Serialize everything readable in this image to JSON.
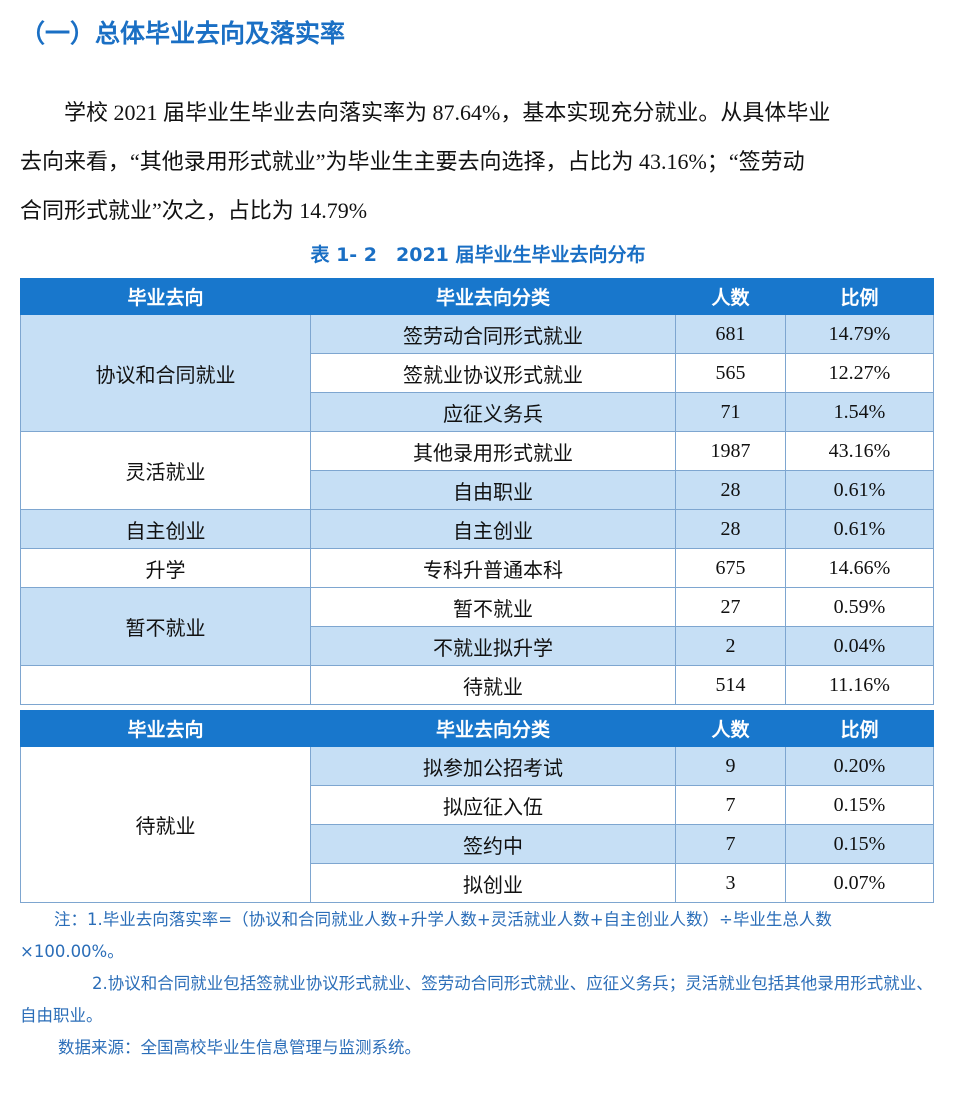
{
  "heading": "（一）总体毕业去向及落实率",
  "paragraph": {
    "lines": [
      "学校 2021 届毕业生毕业去向落实率为 87.64%，基本实现充分就业。从具体毕业",
      "去向来看，“其他录用形式就业”为毕业生主要去向选择，占比为 43.16%；“签劳动",
      "合同形式就业”次之，占比为 14.79%"
    ]
  },
  "caption": "表 1- 2　2021 届毕业生毕业去向分布",
  "table1": {
    "header": [
      "毕业去向",
      "毕业去向分类",
      "人数",
      "比例"
    ],
    "groups": [
      {
        "name": "协议和合同就业",
        "items": [
          {
            "subcategory": "签劳动合同形式就业",
            "count": 681,
            "percent": "14.79%"
          },
          {
            "subcategory": "签就业协议形式就业",
            "count": 565,
            "percent": "12.27%"
          },
          {
            "subcategory": "应征义务兵",
            "count": 71,
            "percent": "1.54%"
          }
        ]
      },
      {
        "name": "灵活就业",
        "items": [
          {
            "subcategory": "其他录用形式就业",
            "count": 1987,
            "percent": "43.16%"
          },
          {
            "subcategory": "自由职业",
            "count": 28,
            "percent": "0.61%"
          }
        ]
      },
      {
        "name": "自主创业",
        "items": [
          {
            "subcategory": "自主创业",
            "count": 28,
            "percent": "0.61%"
          }
        ]
      },
      {
        "name": "升学",
        "items": [
          {
            "subcategory": "专科升普通本科",
            "count": 675,
            "percent": "14.66%"
          }
        ]
      },
      {
        "name": "暂不就业",
        "items": [
          {
            "subcategory": "暂不就业",
            "count": 27,
            "percent": "0.59%"
          },
          {
            "subcategory": "不就业拟升学",
            "count": 2,
            "percent": "0.04%"
          }
        ]
      },
      {
        "items": [
          {
            "subcategory": "待就业",
            "count": 514,
            "percent": "11.16%"
          }
        ]
      }
    ]
  },
  "table2": {
    "header": [
      "毕业去向",
      "毕业去向分类",
      "人数",
      "比例"
    ],
    "groups": [
      {
        "name": "待就业",
        "items": [
          {
            "subcategory": "拟参加公招考试",
            "count": 9,
            "percent": "0.20%"
          },
          {
            "subcategory": "拟应征入伍",
            "count": 7,
            "percent": "0.15%"
          },
          {
            "subcategory": "签约中",
            "count": 7,
            "percent": "0.15%"
          },
          {
            "subcategory": "拟创业",
            "count": 3,
            "percent": "0.07%"
          }
        ]
      }
    ]
  },
  "notes": [
    "注：1.毕业去向落实率=（协议和合同就业人数+升学人数+灵活就业人数+自主创业人数）÷毕业生总人数×100.00%。",
    "2.协议和合同就业包括签就业协议形式就业、签劳动合同形式就业、应征义务兵；灵活就业包括其他录用形式就业、自由职业。",
    "数据来源：全国高校毕业生信息管理与监测系统。"
  ]
}
